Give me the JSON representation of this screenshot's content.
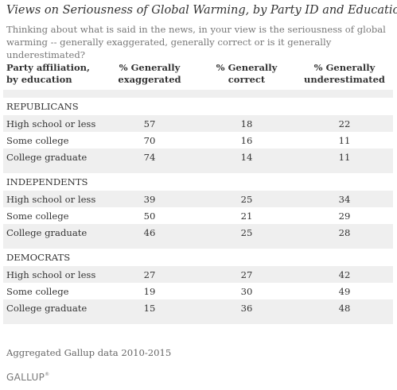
{
  "chart_data": {
    "type": "table",
    "title": "Views on Seriousness of Global Warming, by Party ID and Education",
    "subtitle": "Thinking about what is said in the news, in your view is the seriousness of global warming -- generally exaggerated, generally correct or is it generally underestimated?",
    "columns": [
      [
        "Party affiliation,",
        "by education"
      ],
      [
        "% Generally",
        "exaggerated"
      ],
      [
        "% Generally",
        "correct"
      ],
      [
        "% Generally",
        "underestimated"
      ]
    ],
    "groups": [
      {
        "name": "REPUBLICANS",
        "rows": [
          {
            "label": "High school or less",
            "values": [
              "57",
              "18",
              "22"
            ]
          },
          {
            "label": "Some college",
            "values": [
              "70",
              "16",
              "11"
            ]
          },
          {
            "label": "College graduate",
            "values": [
              "74",
              "14",
              "11"
            ]
          }
        ]
      },
      {
        "name": "INDEPENDENTS",
        "rows": [
          {
            "label": "High school or less",
            "values": [
              "39",
              "25",
              "34"
            ]
          },
          {
            "label": "Some college",
            "values": [
              "50",
              "21",
              "29"
            ]
          },
          {
            "label": "College graduate",
            "values": [
              "46",
              "25",
              "28"
            ]
          }
        ]
      },
      {
        "name": "DEMOCRATS",
        "rows": [
          {
            "label": "High school or less",
            "values": [
              "27",
              "27",
              "42"
            ]
          },
          {
            "label": "Some college",
            "values": [
              "19",
              "30",
              "49"
            ]
          },
          {
            "label": "College graduate",
            "values": [
              "15",
              "36",
              "48"
            ]
          }
        ]
      }
    ],
    "source_note": "Aggregated Gallup data 2010-2015"
  },
  "branding": {
    "logo_text": "GALLUP",
    "logo_mark": "®"
  },
  "colors": {
    "shade": "#efefef",
    "text": "#333333",
    "muted": "#777777"
  }
}
